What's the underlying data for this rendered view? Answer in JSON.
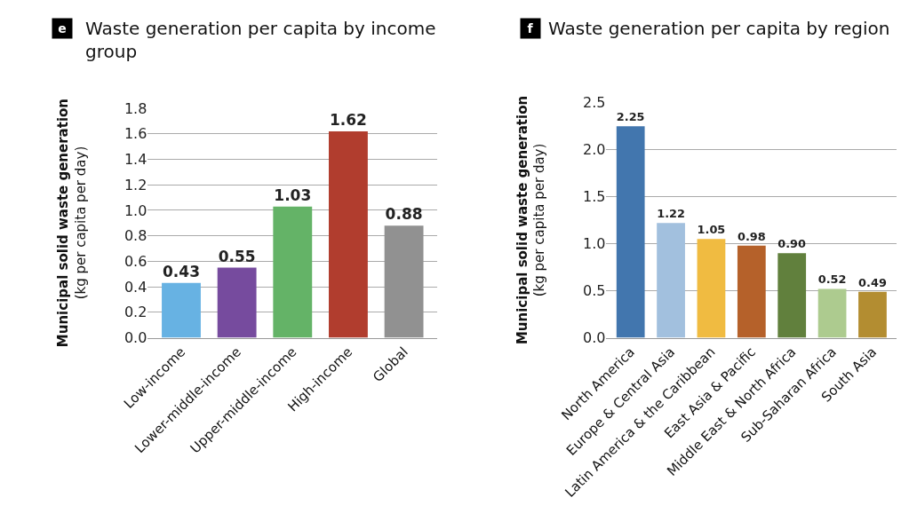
{
  "chart_data": [
    {
      "type": "bar",
      "title": "Waste generation per capita by income group",
      "annotations": [
        "e"
      ],
      "ylabel": "Municipal solid waste generation\n(kg per capita per day)",
      "categories": [
        "Low-income",
        "Lower-middle-income",
        "Upper-middle-income",
        "High-income",
        "Global"
      ],
      "values": [
        0.43,
        0.55,
        1.03,
        1.62,
        0.88
      ],
      "colors": [
        "#67b2e3",
        "#764b9e",
        "#64b367",
        "#b13d2e",
        "#919191"
      ],
      "ylim": [
        0,
        1.8
      ],
      "yticks": [
        {
          "value": 0,
          "label": "0.0"
        },
        0.2,
        0.4,
        0.6,
        0.8,
        {
          "value": 1,
          "label": "1.0"
        },
        1.2,
        1.4,
        1.6,
        1.8
      ],
      "grid": "y",
      "legend": false,
      "data_labels": true,
      "value_labels": [
        "0.43",
        "0.55",
        "1.03",
        "1.62",
        "0.88"
      ]
    },
    {
      "type": "bar",
      "title": "Waste generation per capita by region",
      "annotations": [
        "f"
      ],
      "ylabel": "Municipal solid waste generation\n(kg per capita per day)",
      "categories": [
        "North America",
        "Europe & Central Asia",
        "Latin America & the Caribbean",
        "East Asia & Pacific",
        "Middle East & North Africa",
        "Sub-Saharan Africa",
        "South Asia"
      ],
      "values": [
        2.25,
        1.22,
        1.05,
        0.98,
        0.9,
        0.52,
        0.49
      ],
      "colors": [
        "#4276ae",
        "#a2c0de",
        "#f0bb41",
        "#b5612a",
        "#61803d",
        "#adcb8f",
        "#b38d31"
      ],
      "ylim": [
        0,
        2.5
      ],
      "yticks": [
        {
          "value": 0,
          "label": "0.0"
        },
        0.5,
        {
          "value": 1,
          "label": "1.0"
        },
        1.5,
        {
          "value": 2,
          "label": "2.0"
        },
        2.5
      ],
      "grid": "y",
      "legend": false,
      "data_labels": true,
      "value_labels": [
        "2.25",
        "1.22",
        "1.05",
        "0.98",
        "0.90",
        "0.52",
        "0.49"
      ]
    }
  ]
}
